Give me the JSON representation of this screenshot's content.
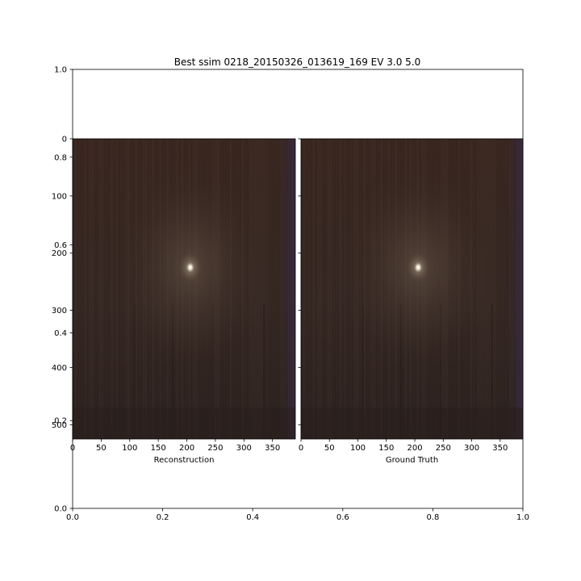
{
  "figure": {
    "title": "Best ssim 0218_20150326_013619_169 EV 3.0 5.0"
  },
  "chart_data": [
    {
      "type": "axes",
      "name": "outer-axes",
      "xlim": [
        0.0,
        1.0
      ],
      "ylim": [
        0.0,
        1.0
      ],
      "x_ticks": [
        0.0,
        0.2,
        0.4,
        0.6,
        0.8,
        1.0
      ],
      "x_tick_labels": [
        "0.0",
        "0.2",
        "0.4",
        "0.6",
        "0.8",
        "1.0"
      ],
      "y_ticks": [
        0.0,
        0.2,
        0.4,
        0.6,
        0.8,
        1.0
      ],
      "y_tick_labels": [
        "0.0",
        "0.2",
        "0.4",
        "0.6",
        "0.8",
        "1.0"
      ],
      "grid": false
    },
    {
      "type": "image",
      "name": "reconstruction",
      "xlabel": "Reconstruction",
      "image_width": 390,
      "image_height": 525,
      "x_ticks": [
        0,
        50,
        100,
        150,
        200,
        250,
        300,
        350
      ],
      "x_tick_labels": [
        "0",
        "50",
        "100",
        "150",
        "200",
        "250",
        "300",
        "350"
      ],
      "y_ticks": [
        0,
        100,
        200,
        300,
        400,
        500
      ],
      "y_tick_labels": [
        "0",
        "100",
        "200",
        "300",
        "400",
        "500"
      ],
      "bright_spot": [
        206,
        225
      ],
      "colors": {
        "base": "#352620",
        "glow": "#ffffff"
      }
    },
    {
      "type": "image",
      "name": "ground-truth",
      "xlabel": "Ground Truth",
      "image_width": 390,
      "image_height": 525,
      "x_ticks": [
        0,
        50,
        100,
        150,
        200,
        250,
        300,
        350
      ],
      "x_tick_labels": [
        "0",
        "50",
        "100",
        "150",
        "200",
        "250",
        "300",
        "350"
      ],
      "y_ticks": [
        0,
        100,
        200,
        300,
        400,
        500
      ],
      "y_tick_labels": [],
      "bright_spot": [
        206,
        225
      ],
      "colors": {
        "base": "#352620",
        "glow": "#ffffff"
      }
    }
  ]
}
